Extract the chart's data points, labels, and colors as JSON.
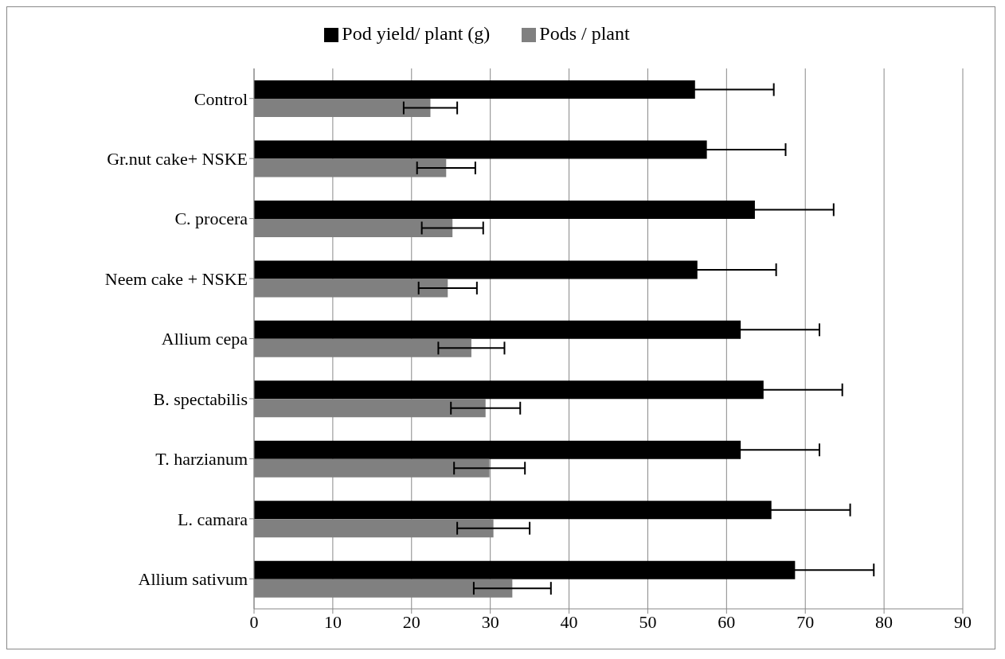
{
  "chart_data": {
    "type": "bar",
    "orientation": "horizontal",
    "categories": [
      "Control",
      "Gr.nut cake+ NSKE",
      "C. procera",
      "Neem cake + NSKE",
      "Allium cepa",
      "B. spectabilis",
      "T. harzianum",
      "L. camara",
      "Allium sativum"
    ],
    "series": [
      {
        "name": "Pod yield/ plant (g)",
        "color": "#000000",
        "values": [
          56,
          57.5,
          63.6,
          56.3,
          61.8,
          64.7,
          61.8,
          65.7,
          68.7
        ],
        "errors": [
          10,
          10,
          10,
          10,
          10,
          10,
          10,
          10,
          10
        ]
      },
      {
        "name": "Pods / plant",
        "color": "#808080",
        "values": [
          22.4,
          24.4,
          25.2,
          24.6,
          27.6,
          29.4,
          29.9,
          30.4,
          32.8
        ],
        "errors": [
          3.4,
          3.7,
          3.9,
          3.7,
          4.2,
          4.4,
          4.5,
          4.6,
          4.9
        ]
      }
    ],
    "xlim": [
      0,
      90
    ],
    "xticks": [
      0,
      10,
      20,
      30,
      40,
      50,
      60,
      70,
      80,
      90
    ],
    "grid": "x",
    "legend": "top"
  }
}
